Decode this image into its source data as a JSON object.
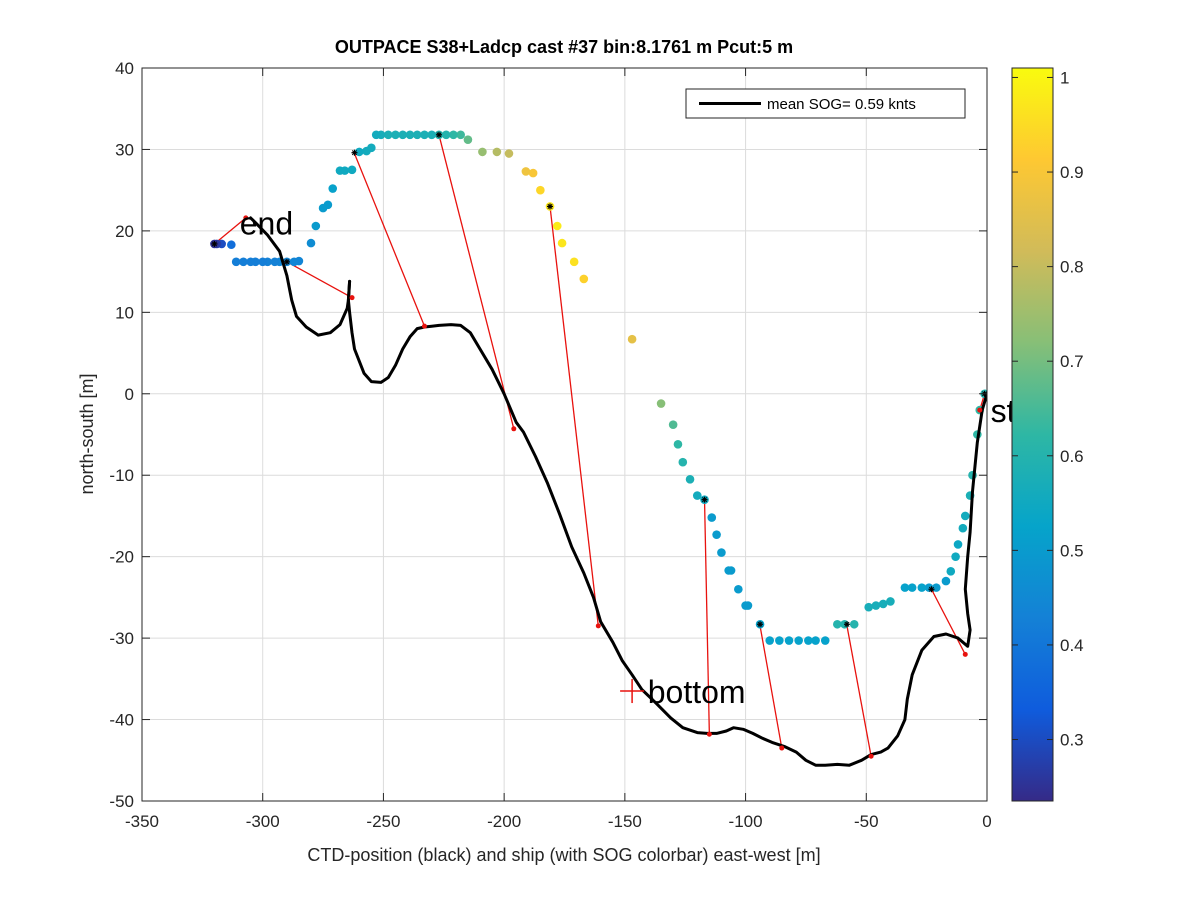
{
  "chart_data": {
    "type": "scatter",
    "title": "OUTPACE S38+Ladcp cast #37 bin:8.1761 m  Pcut:5 m",
    "xlabel": "CTD-position (black) and ship (with SOG colorbar) east-west [m]",
    "ylabel": "north-south [m]",
    "xlim": [
      -350,
      0
    ],
    "ylim": [
      -50,
      40
    ],
    "xticks": [
      "-350",
      "-300",
      "-250",
      "-200",
      "-150",
      "-100",
      "-50",
      "0"
    ],
    "yticks": [
      "40",
      "30",
      "20",
      "10",
      "0",
      "-10",
      "-20",
      "-30",
      "-40",
      "-50"
    ],
    "grid": true,
    "legend": {
      "location": "top-right",
      "entry": "mean SOG=  0.59 knts"
    },
    "colorbar": {
      "range": [
        0.235,
        1.01
      ],
      "ticks": [
        "0.3",
        "0.4",
        "0.5",
        "0.6",
        "0.7",
        "0.8",
        "0.9",
        "1"
      ],
      "tick_values": [
        0.3,
        0.4,
        0.5,
        0.6,
        0.7,
        0.8,
        0.9,
        1.0
      ]
    },
    "annotations": [
      {
        "text": "start",
        "x": -1,
        "y": -2
      },
      {
        "text": "end",
        "x": -312,
        "y": 21
      },
      {
        "text": "bottom",
        "x": -143,
        "y": -36.5
      }
    ],
    "bottom_marker": {
      "x": -147,
      "y": -36.5
    },
    "ctd_track": [
      [
        -264,
        13.8
      ],
      [
        -264.5,
        11.5
      ],
      [
        -265,
        10.5
      ],
      [
        -268,
        8.5
      ],
      [
        -272,
        7.5
      ],
      [
        -277,
        7.2
      ],
      [
        -282,
        8.2
      ],
      [
        -286,
        9.5
      ],
      [
        -288,
        11.5
      ],
      [
        -290,
        14.5
      ],
      [
        -293,
        17.5
      ],
      [
        -298,
        19.5
      ],
      [
        -303,
        21
      ],
      [
        -305,
        21.6
      ]
    ],
    "ctd_track_main": [
      [
        0,
        0
      ],
      [
        -2,
        -2
      ],
      [
        -4,
        -6
      ],
      [
        -6,
        -12
      ],
      [
        -7,
        -17
      ],
      [
        -8,
        -20
      ],
      [
        -9,
        -24
      ],
      [
        -8,
        -27
      ],
      [
        -7,
        -29
      ],
      [
        -8,
        -31
      ],
      [
        -12,
        -30
      ],
      [
        -17,
        -29.5
      ],
      [
        -22,
        -29.8
      ],
      [
        -27,
        -31.5
      ],
      [
        -31,
        -34.5
      ],
      [
        -33,
        -37.5
      ],
      [
        -34,
        -40
      ],
      [
        -37,
        -42
      ],
      [
        -41,
        -43.5
      ],
      [
        -44,
        -44
      ],
      [
        -48,
        -44.3
      ],
      [
        -52,
        -45
      ],
      [
        -57,
        -45.6
      ],
      [
        -62,
        -45.5
      ],
      [
        -67,
        -45.6
      ],
      [
        -71,
        -45.6
      ],
      [
        -75,
        -45
      ],
      [
        -79,
        -44
      ],
      [
        -84,
        -43.3
      ],
      [
        -89,
        -42.8
      ],
      [
        -93,
        -42.3
      ],
      [
        -97,
        -41.7
      ],
      [
        -101,
        -41.2
      ],
      [
        -105,
        -41
      ],
      [
        -108,
        -41.4
      ],
      [
        -112,
        -41.7
      ],
      [
        -116,
        -41.7
      ],
      [
        -120,
        -41.6
      ],
      [
        -126,
        -41
      ],
      [
        -131,
        -39.8
      ],
      [
        -137,
        -38
      ],
      [
        -143,
        -36.3
      ],
      [
        -147,
        -34.5
      ],
      [
        -151,
        -32.8
      ],
      [
        -155,
        -30.5
      ],
      [
        -160,
        -28
      ],
      [
        -163,
        -25
      ],
      [
        -167,
        -22
      ],
      [
        -172,
        -18.8
      ],
      [
        -177,
        -14.8
      ],
      [
        -182,
        -11
      ],
      [
        -187,
        -7.7
      ],
      [
        -192,
        -4.7
      ],
      [
        -195,
        -3.5
      ],
      [
        -200,
        0
      ],
      [
        -205,
        3
      ],
      [
        -210,
        5.5
      ],
      [
        -214,
        7.5
      ],
      [
        -218,
        8.4
      ],
      [
        -222,
        8.5
      ],
      [
        -227,
        8.4
      ],
      [
        -230,
        8.3
      ],
      [
        -233,
        8.2
      ],
      [
        -236,
        8
      ],
      [
        -239,
        7
      ],
      [
        -242,
        5.5
      ],
      [
        -245,
        3.5
      ],
      [
        -248,
        2
      ],
      [
        -251,
        1.4
      ],
      [
        -255,
        1.5
      ],
      [
        -258,
        2.5
      ],
      [
        -262,
        5.5
      ],
      [
        -263,
        7.5
      ],
      [
        -264,
        10
      ],
      [
        -264.5,
        11.5
      ],
      [
        -264,
        13.8
      ]
    ],
    "red_connectors": [
      [
        [
          -1,
          0
        ],
        [
          -3,
          -2
        ]
      ],
      [
        [
          -23,
          -24
        ],
        [
          -9,
          -32
        ]
      ],
      [
        [
          -58,
          -28.5
        ],
        [
          -48,
          -44.5
        ]
      ],
      [
        [
          -94,
          -28.5
        ],
        [
          -85,
          -43.5
        ]
      ],
      [
        [
          -117,
          -13
        ],
        [
          -115,
          -41.8
        ]
      ],
      [
        [
          -181,
          23
        ],
        [
          -161,
          -28.5
        ]
      ],
      [
        [
          -227,
          31.8
        ],
        [
          -196,
          -4.3
        ]
      ],
      [
        [
          -262,
          29.5
        ],
        [
          -233,
          8.3
        ]
      ],
      [
        [
          -290,
          16.2
        ],
        [
          -263,
          11.8
        ]
      ],
      [
        [
          -320,
          18.4
        ],
        [
          -307,
          21.6
        ]
      ]
    ],
    "red_connector_endpoints": [
      [
        -3,
        -2
      ],
      [
        -9,
        -32
      ],
      [
        -48,
        -44.5
      ],
      [
        -85,
        -43.5
      ],
      [
        -115,
        -41.8
      ],
      [
        -161,
        -28.5
      ],
      [
        -196,
        -4.3
      ],
      [
        -233,
        8.3
      ],
      [
        -263,
        11.8
      ],
      [
        -307,
        21.6
      ]
    ],
    "ship_points": [
      {
        "x": -1,
        "y": 0,
        "v": 0.6
      },
      {
        "x": -3,
        "y": -2,
        "v": 0.62
      },
      {
        "x": -4,
        "y": -5,
        "v": 0.62
      },
      {
        "x": -6,
        "y": -10,
        "v": 0.6
      },
      {
        "x": -7,
        "y": -12.5,
        "v": 0.58
      },
      {
        "x": -9,
        "y": -15,
        "v": 0.56
      },
      {
        "x": -10,
        "y": -16.5,
        "v": 0.56
      },
      {
        "x": -12,
        "y": -18.5,
        "v": 0.54
      },
      {
        "x": -13,
        "y": -20,
        "v": 0.55
      },
      {
        "x": -15,
        "y": -21.8,
        "v": 0.55
      },
      {
        "x": -17,
        "y": -23,
        "v": 0.5
      },
      {
        "x": -21,
        "y": -23.8,
        "v": 0.5
      },
      {
        "x": -24,
        "y": -23.8,
        "v": 0.5
      },
      {
        "x": -27,
        "y": -23.8,
        "v": 0.52
      },
      {
        "x": -31,
        "y": -23.8,
        "v": 0.52
      },
      {
        "x": -34,
        "y": -23.8,
        "v": 0.52
      },
      {
        "x": -40,
        "y": -25.5,
        "v": 0.57
      },
      {
        "x": -43,
        "y": -25.8,
        "v": 0.57
      },
      {
        "x": -46,
        "y": -26,
        "v": 0.57
      },
      {
        "x": -49,
        "y": -26.2,
        "v": 0.57
      },
      {
        "x": -55,
        "y": -28.3,
        "v": 0.6
      },
      {
        "x": -59,
        "y": -28.3,
        "v": 0.6
      },
      {
        "x": -62,
        "y": -28.3,
        "v": 0.6
      },
      {
        "x": -67,
        "y": -30.3,
        "v": 0.52
      },
      {
        "x": -71,
        "y": -30.3,
        "v": 0.52
      },
      {
        "x": -74,
        "y": -30.3,
        "v": 0.52
      },
      {
        "x": -78,
        "y": -30.3,
        "v": 0.52
      },
      {
        "x": -82,
        "y": -30.3,
        "v": 0.52
      },
      {
        "x": -86,
        "y": -30.3,
        "v": 0.52
      },
      {
        "x": -90,
        "y": -30.3,
        "v": 0.52
      },
      {
        "x": -94,
        "y": -28.3,
        "v": 0.52
      },
      {
        "x": -99,
        "y": -26,
        "v": 0.5
      },
      {
        "x": -100,
        "y": -26,
        "v": 0.5
      },
      {
        "x": -103,
        "y": -24,
        "v": 0.5
      },
      {
        "x": -106,
        "y": -21.7,
        "v": 0.5
      },
      {
        "x": -107,
        "y": -21.7,
        "v": 0.5
      },
      {
        "x": -110,
        "y": -19.5,
        "v": 0.5
      },
      {
        "x": -112,
        "y": -17.3,
        "v": 0.5
      },
      {
        "x": -114,
        "y": -15.2,
        "v": 0.5
      },
      {
        "x": -117,
        "y": -13,
        "v": 0.55
      },
      {
        "x": -120,
        "y": -12.5,
        "v": 0.56
      },
      {
        "x": -123,
        "y": -10.5,
        "v": 0.58
      },
      {
        "x": -126,
        "y": -8.4,
        "v": 0.6
      },
      {
        "x": -128,
        "y": -6.2,
        "v": 0.62
      },
      {
        "x": -130,
        "y": -3.8,
        "v": 0.66
      },
      {
        "x": -135,
        "y": -1.2,
        "v": 0.72
      },
      {
        "x": -147,
        "y": 6.7,
        "v": 0.86
      },
      {
        "x": -167,
        "y": 14.1,
        "v": 0.93
      },
      {
        "x": -171,
        "y": 16.2,
        "v": 0.96
      },
      {
        "x": -176,
        "y": 18.5,
        "v": 0.97
      },
      {
        "x": -178,
        "y": 20.6,
        "v": 0.98
      },
      {
        "x": -181,
        "y": 23,
        "v": 0.97
      },
      {
        "x": -185,
        "y": 25,
        "v": 0.94
      },
      {
        "x": -188,
        "y": 27.1,
        "v": 0.9
      },
      {
        "x": -191,
        "y": 27.3,
        "v": 0.88
      },
      {
        "x": -198,
        "y": 29.5,
        "v": 0.8
      },
      {
        "x": -203,
        "y": 29.7,
        "v": 0.78
      },
      {
        "x": -209,
        "y": 29.7,
        "v": 0.74
      },
      {
        "x": -215,
        "y": 31.2,
        "v": 0.68
      },
      {
        "x": -218,
        "y": 31.8,
        "v": 0.64
      },
      {
        "x": -221,
        "y": 31.8,
        "v": 0.62
      },
      {
        "x": -224,
        "y": 31.8,
        "v": 0.6
      },
      {
        "x": -227,
        "y": 31.8,
        "v": 0.6
      },
      {
        "x": -230,
        "y": 31.8,
        "v": 0.58
      },
      {
        "x": -233,
        "y": 31.8,
        "v": 0.58
      },
      {
        "x": -236,
        "y": 31.8,
        "v": 0.58
      },
      {
        "x": -239,
        "y": 31.8,
        "v": 0.58
      },
      {
        "x": -242,
        "y": 31.8,
        "v": 0.58
      },
      {
        "x": -245,
        "y": 31.8,
        "v": 0.58
      },
      {
        "x": -248,
        "y": 31.8,
        "v": 0.58
      },
      {
        "x": -251,
        "y": 31.8,
        "v": 0.57
      },
      {
        "x": -253,
        "y": 31.8,
        "v": 0.56
      },
      {
        "x": -255,
        "y": 30.2,
        "v": 0.56
      },
      {
        "x": -257,
        "y": 29.8,
        "v": 0.56
      },
      {
        "x": -260,
        "y": 29.7,
        "v": 0.55
      },
      {
        "x": -263,
        "y": 27.5,
        "v": 0.55
      },
      {
        "x": -266,
        "y": 27.4,
        "v": 0.55
      },
      {
        "x": -268,
        "y": 27.4,
        "v": 0.55
      },
      {
        "x": -271,
        "y": 25.2,
        "v": 0.52
      },
      {
        "x": -273,
        "y": 23.2,
        "v": 0.5
      },
      {
        "x": -275,
        "y": 22.8,
        "v": 0.5
      },
      {
        "x": -278,
        "y": 20.6,
        "v": 0.5
      },
      {
        "x": -280,
        "y": 18.5,
        "v": 0.46
      },
      {
        "x": -285,
        "y": 16.3,
        "v": 0.44
      },
      {
        "x": -287,
        "y": 16.2,
        "v": 0.44
      },
      {
        "x": -290,
        "y": 16.2,
        "v": 0.44
      },
      {
        "x": -293,
        "y": 16.2,
        "v": 0.44
      },
      {
        "x": -295,
        "y": 16.2,
        "v": 0.43
      },
      {
        "x": -298,
        "y": 16.2,
        "v": 0.43
      },
      {
        "x": -300,
        "y": 16.2,
        "v": 0.42
      },
      {
        "x": -303,
        "y": 16.2,
        "v": 0.42
      },
      {
        "x": -305,
        "y": 16.2,
        "v": 0.42
      },
      {
        "x": -308,
        "y": 16.2,
        "v": 0.42
      },
      {
        "x": -311,
        "y": 16.2,
        "v": 0.42
      },
      {
        "x": -313,
        "y": 18.3,
        "v": 0.38
      },
      {
        "x": -317,
        "y": 18.4,
        "v": 0.3
      },
      {
        "x": -319,
        "y": 18.4,
        "v": 0.27
      },
      {
        "x": -320,
        "y": 18.4,
        "v": 0.25
      }
    ],
    "ship_star_markers": [
      [
        -1,
        0
      ],
      [
        -23,
        -24
      ],
      [
        -58,
        -28.3
      ],
      [
        -94,
        -28.3
      ],
      [
        -117,
        -13
      ],
      [
        -181,
        23
      ],
      [
        -227,
        31.8
      ],
      [
        -262,
        29.6
      ],
      [
        -290,
        16.2
      ],
      [
        -320,
        18.4
      ]
    ]
  }
}
